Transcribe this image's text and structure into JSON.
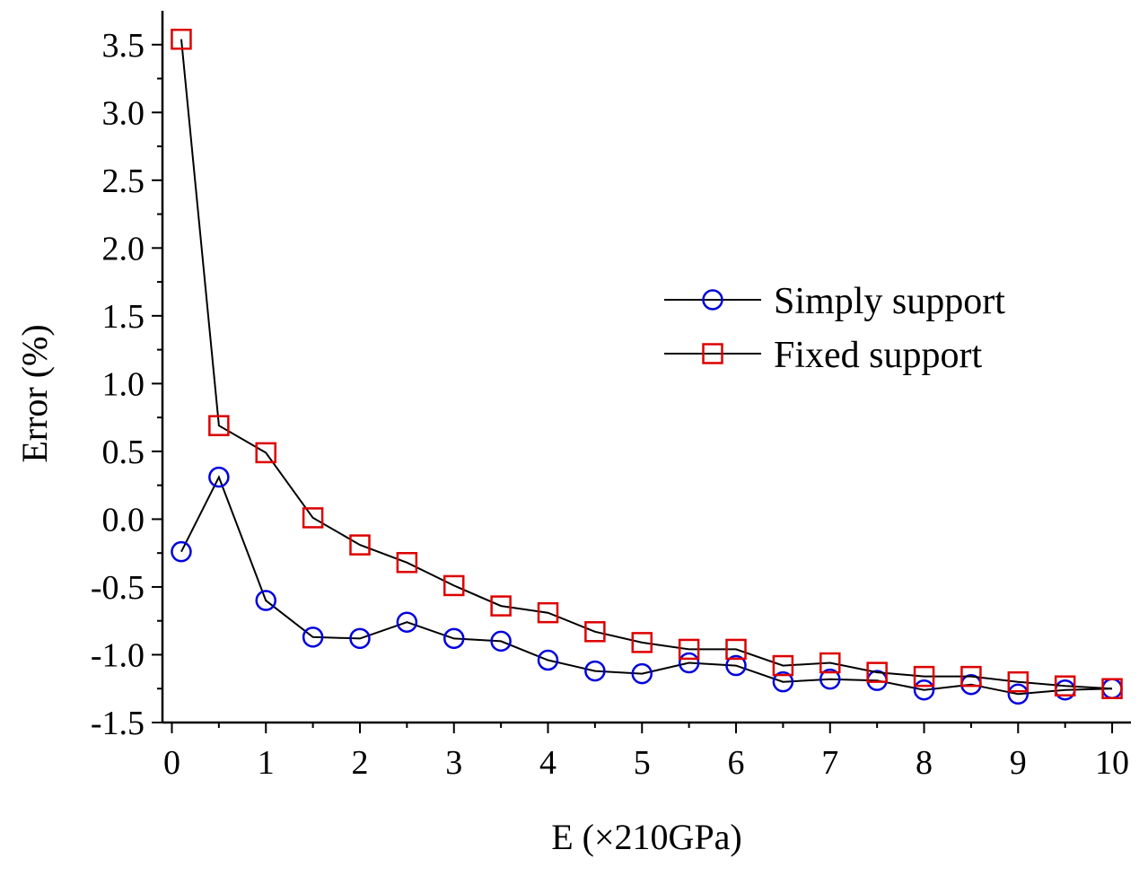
{
  "chart_data": {
    "type": "line",
    "title": "",
    "xlabel": "E (×210GPa)",
    "ylabel": "Error (%)",
    "xlim": [
      -0.1,
      10.2
    ],
    "ylim": [
      -1.5,
      3.75
    ],
    "xticks": [
      0,
      1,
      2,
      3,
      4,
      5,
      6,
      7,
      8,
      9,
      10
    ],
    "xtick_labels": [
      "0",
      "1",
      "2",
      "3",
      "4",
      "5",
      "6",
      "7",
      "8",
      "9",
      "10"
    ],
    "yticks": [
      -1.5,
      -1.0,
      -0.5,
      0.0,
      0.5,
      1.0,
      1.5,
      2.0,
      2.5,
      3.0,
      3.5
    ],
    "ytick_labels": [
      "-1.5",
      "-1.0",
      "-0.5",
      "0.0",
      "0.5",
      "1.0",
      "1.5",
      "2.0",
      "2.5",
      "3.0",
      "3.5"
    ],
    "legend_position": "right",
    "x": [
      0.1,
      0.5,
      1,
      1.5,
      2,
      2.5,
      3,
      3.5,
      4,
      4.5,
      5,
      5.5,
      6,
      6.5,
      7,
      7.5,
      8,
      8.5,
      9,
      9.5,
      10
    ],
    "series": [
      {
        "name": "Simply support",
        "marker": "circle",
        "color": "#0000dd",
        "line_color": "#000000",
        "values": [
          -0.24,
          0.31,
          -0.6,
          -0.87,
          -0.88,
          -0.76,
          -0.88,
          -0.9,
          -1.04,
          -1.12,
          -1.14,
          -1.06,
          -1.08,
          -1.2,
          -1.18,
          -1.19,
          -1.26,
          -1.22,
          -1.29,
          -1.26,
          -1.25
        ]
      },
      {
        "name": "Fixed support",
        "marker": "square",
        "color": "#dd0000",
        "line_color": "#000000",
        "values": [
          3.54,
          0.69,
          0.49,
          0.01,
          -0.19,
          -0.32,
          -0.49,
          -0.64,
          -0.69,
          -0.83,
          -0.91,
          -0.96,
          -0.96,
          -1.08,
          -1.06,
          -1.13,
          -1.16,
          -1.16,
          -1.2,
          -1.23,
          -1.25
        ]
      }
    ]
  }
}
